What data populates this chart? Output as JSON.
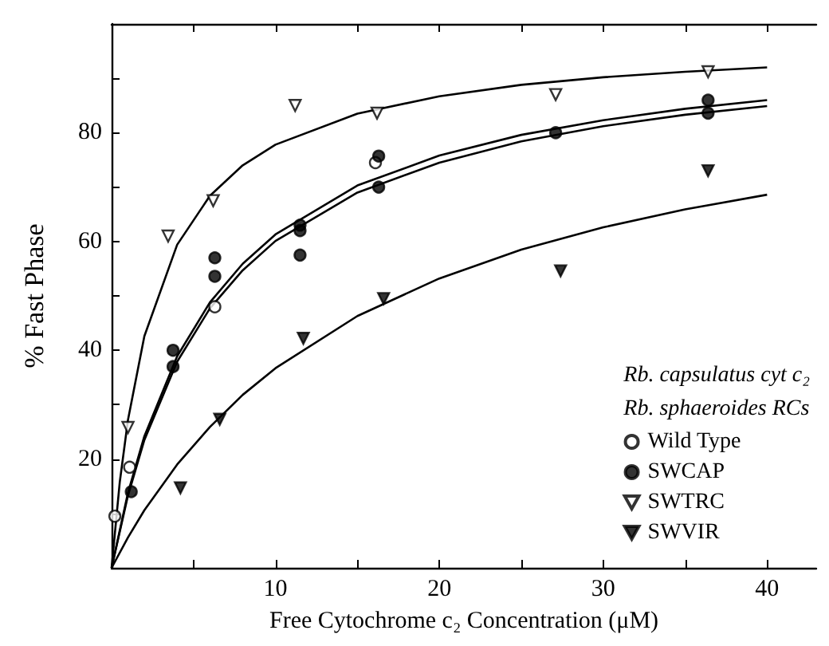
{
  "chart_data": {
    "type": "scatter",
    "xlabel": "Free Cytochrome c₂ Concentration (μM)",
    "ylabel": "% Fast Phase",
    "legend_title": "Rb. capsulatus cyt c₂\nRb. sphaeroides RCs",
    "legend": "right",
    "grid": false,
    "xlim": [
      0,
      43
    ],
    "ylim": [
      0,
      100
    ],
    "xticks": [
      {
        "value": 5,
        "label": null
      },
      10,
      {
        "value": 15,
        "label": null
      },
      20,
      {
        "value": 25,
        "label": null
      },
      30,
      {
        "value": 35,
        "label": null
      },
      40
    ],
    "yticks": [
      {
        "value": 10,
        "label": null
      },
      20,
      {
        "value": 30,
        "label": null
      },
      40,
      {
        "value": 50,
        "label": null
      },
      60,
      {
        "value": 70,
        "label": null
      },
      80,
      {
        "value": 90,
        "label": null
      }
    ],
    "series": [
      {
        "name": "Wild Type",
        "marker": "circle-open",
        "color": "#000000",
        "x": [
          0.2,
          1.1,
          6.3,
          16.1
        ],
        "values": [
          9.5,
          18.5,
          48,
          74.5
        ]
      },
      {
        "name": "SWCAP",
        "marker": "circle",
        "color": "#000000",
        "x": [
          1.2,
          3.75,
          3.75,
          6.3,
          6.3,
          11.5,
          11.5,
          11.5,
          16.3,
          16.3,
          27.1,
          36.4,
          36.4
        ],
        "values": [
          14,
          40,
          37,
          57,
          53.6,
          63,
          62,
          57.5,
          75.7,
          70,
          80,
          86,
          83.6
        ]
      },
      {
        "name": "SWTRC",
        "marker": "triangle-down-open",
        "color": "#000000",
        "x": [
          1.0,
          3.45,
          6.2,
          11.2,
          16.2,
          27.1,
          36.4
        ],
        "values": [
          25.8,
          61,
          67.5,
          85,
          83.6,
          87,
          91.2
        ]
      },
      {
        "name": "SWVIR",
        "marker": "triangle-down",
        "color": "#000000",
        "x": [
          4.2,
          6.6,
          11.7,
          16.6,
          27.4,
          36.4
        ],
        "values": [
          14.7,
          27.3,
          42.2,
          49.5,
          54.6,
          73
        ]
      },
      {
        "type": "line",
        "marker": "none",
        "color": "#000000",
        "x": [
          0,
          1,
          2,
          4,
          6,
          8,
          10,
          15,
          20,
          25,
          30,
          35,
          40
        ],
        "values": [
          0,
          13.3,
          23.5,
          37.9,
          47.7,
          54.7,
          60.1,
          69,
          74.5,
          78.4,
          81.2,
          83.3,
          84.9
        ]
      },
      {
        "type": "line",
        "marker": "none",
        "color": "#000000",
        "x": [
          0,
          1,
          2,
          4,
          6,
          8,
          10,
          15,
          20,
          25,
          30,
          35,
          40
        ],
        "values": [
          0,
          13.8,
          24.2,
          38.9,
          48.8,
          55.9,
          61.3,
          70.3,
          75.8,
          79.6,
          82.3,
          84.4,
          86
        ]
      },
      {
        "type": "line",
        "marker": "none",
        "color": "#000000",
        "x": [
          0,
          0.5,
          1,
          2,
          4,
          6,
          8,
          10,
          15,
          20,
          25,
          30,
          35,
          40
        ],
        "values": [
          0,
          15.8,
          27.2,
          42.6,
          59.4,
          68.4,
          74,
          77.8,
          83.5,
          86.7,
          88.8,
          90.2,
          91.2,
          92
        ]
      },
      {
        "type": "line",
        "marker": "none",
        "color": "#000000",
        "x": [
          0,
          1,
          2,
          4,
          6,
          8,
          10,
          15,
          20,
          25,
          30,
          35,
          40
        ],
        "values": [
          0,
          5.6,
          10.6,
          19,
          25.9,
          31.8,
          36.7,
          46.3,
          53.2,
          58.5,
          62.6,
          65.9,
          68.6
        ]
      }
    ]
  }
}
